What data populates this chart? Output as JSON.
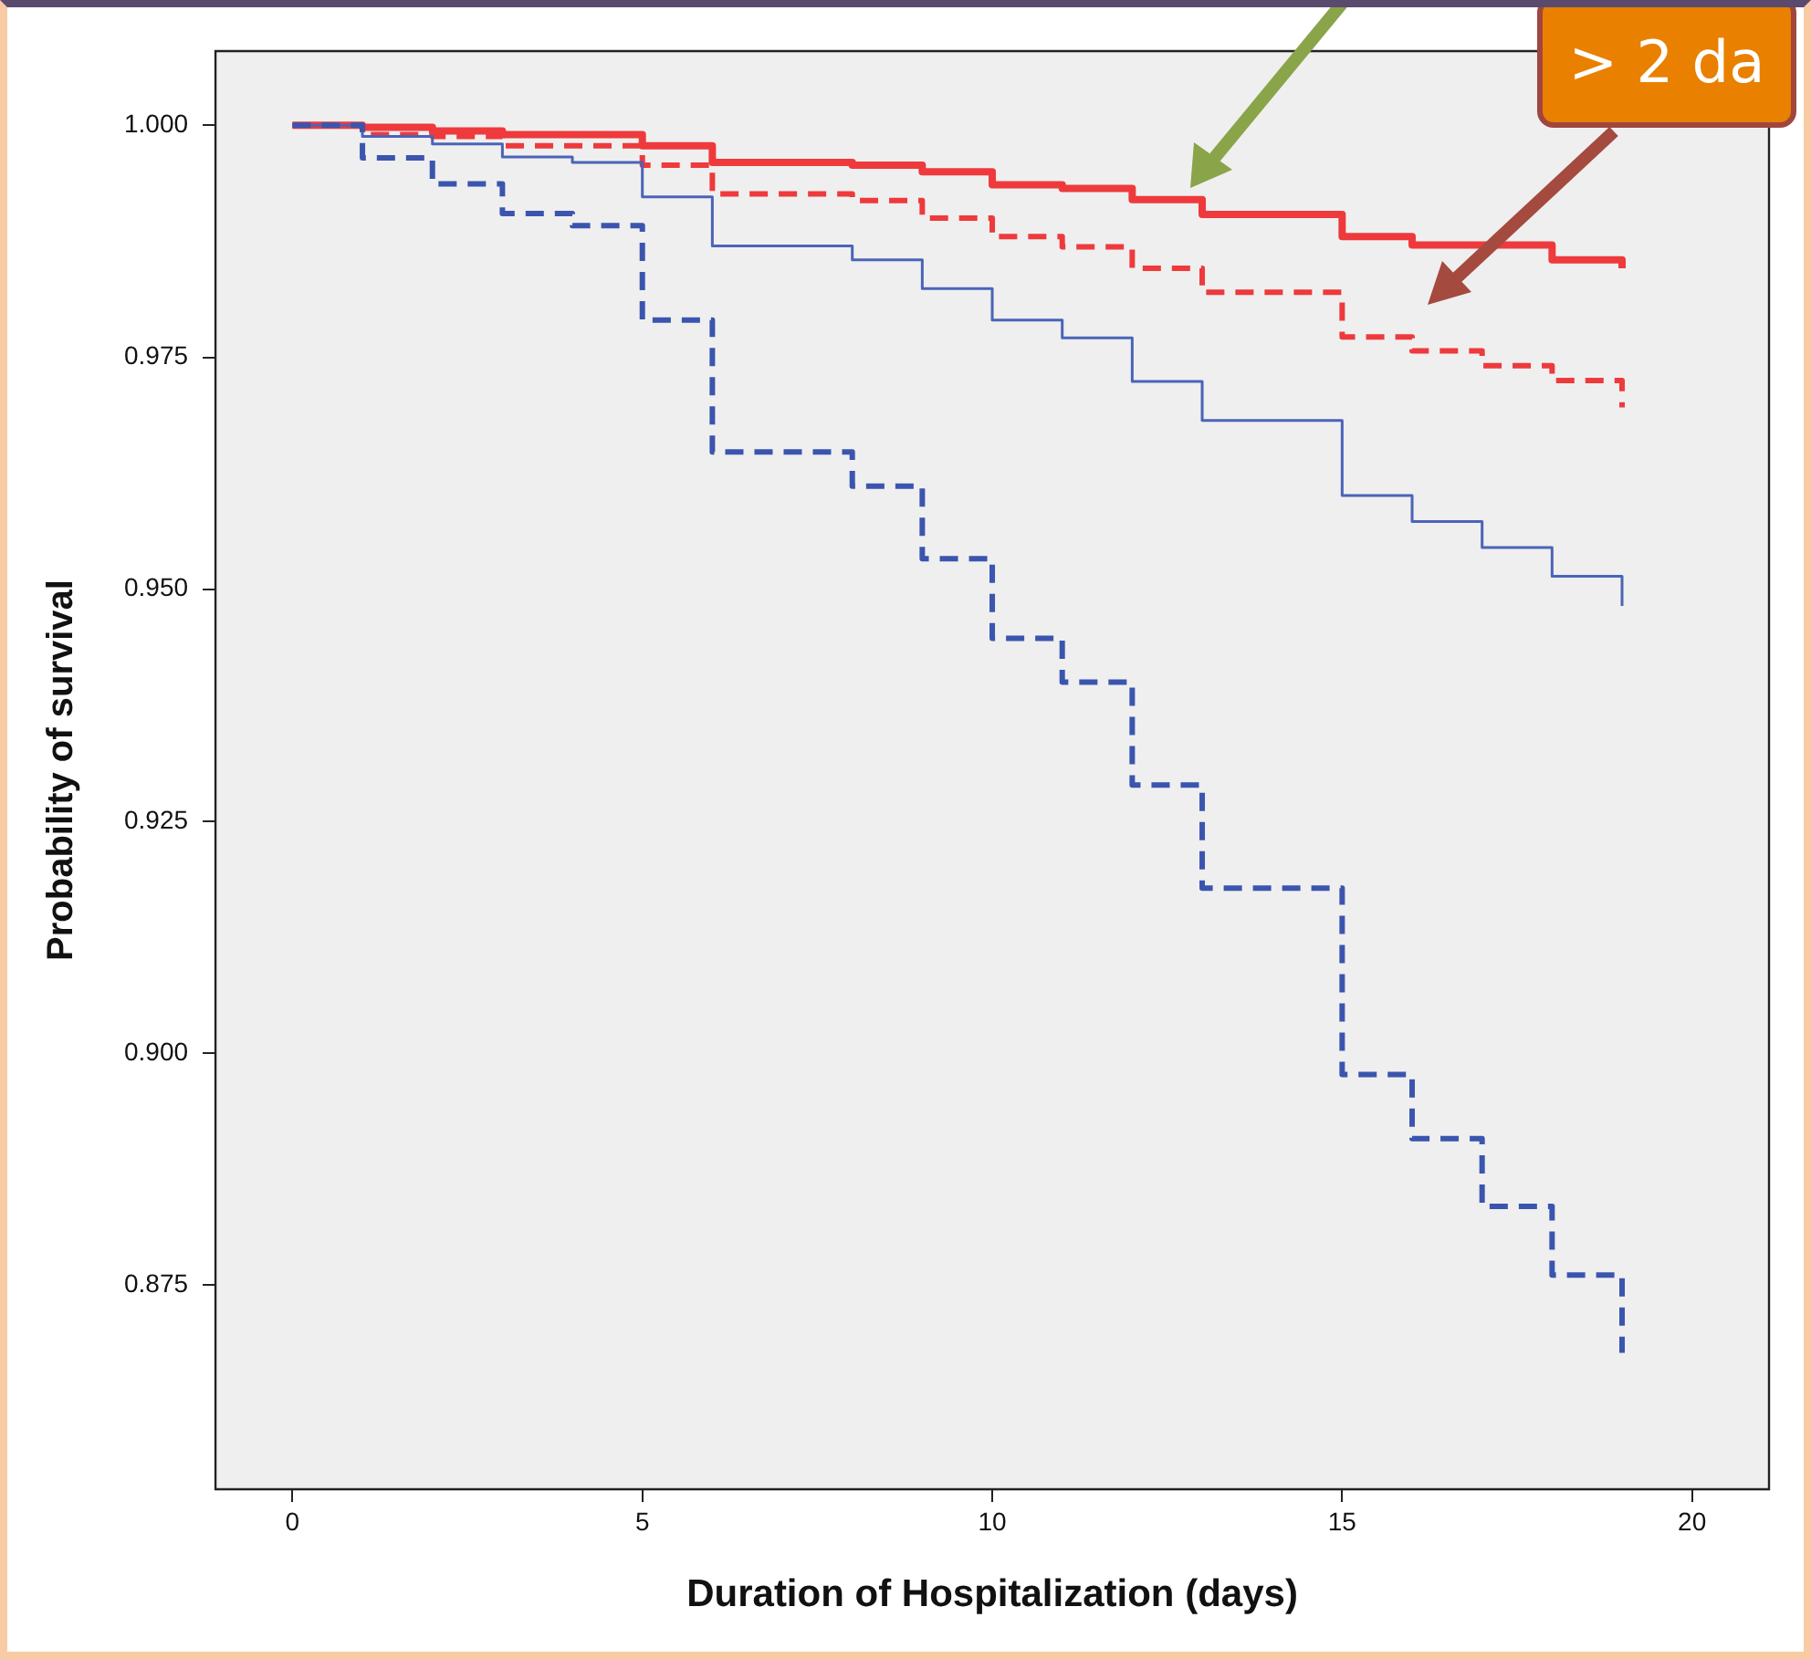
{
  "chart_data": {
    "type": "step",
    "xlabel": "Duration of Hospitalization (days)",
    "ylabel": "Probability of survival",
    "xlim": [
      -1.1,
      21.1
    ],
    "ylim": [
      0.853,
      1.008
    ],
    "xticks": [
      0,
      5,
      10,
      15,
      20
    ],
    "yticks": [
      {
        "value": 1.0,
        "label": "1.000"
      },
      0.975,
      {
        "value": 0.95,
        "label": "0.950"
      },
      0.925,
      {
        "value": 0.9,
        "label": "0.900"
      },
      0.875
    ],
    "grid": false,
    "annotations": [
      "> 2 da"
    ],
    "series": [
      {
        "color": "#ee3a3c",
        "line_style": "solid",
        "x": [
          0,
          1,
          2,
          3,
          5,
          6,
          8,
          9,
          10,
          11,
          12,
          13,
          15,
          16,
          18,
          19
        ],
        "values": [
          1.0,
          0.9998,
          0.9994,
          0.999,
          0.9978,
          0.996,
          0.9957,
          0.995,
          0.9936,
          0.9932,
          0.992,
          0.9904,
          0.988,
          0.9871,
          0.9855,
          0.9846
        ]
      },
      {
        "color": "#ee3a3c",
        "line_style": "dashed",
        "x": [
          0,
          1,
          2,
          3,
          5,
          6,
          8,
          9,
          10,
          11,
          12,
          13,
          15,
          16,
          17,
          18,
          19
        ],
        "values": [
          1.0,
          0.999,
          0.9988,
          0.9978,
          0.9957,
          0.9926,
          0.9919,
          0.99,
          0.988,
          0.9869,
          0.9846,
          0.982,
          0.9772,
          0.9757,
          0.9741,
          0.9725,
          0.9696
        ]
      },
      {
        "color": "#4a64b8",
        "line_style": "solid",
        "x": [
          0,
          1,
          2,
          3,
          4,
          5,
          6,
          8,
          9,
          10,
          11,
          12,
          13,
          15,
          16,
          17,
          18,
          19
        ],
        "values": [
          1.0,
          0.9988,
          0.998,
          0.9966,
          0.996,
          0.9923,
          0.987,
          0.9855,
          0.9824,
          0.979,
          0.9771,
          0.9724,
          0.9682,
          0.9601,
          0.9573,
          0.9545,
          0.9514,
          0.9482
        ]
      },
      {
        "color": "#3b55ae",
        "line_style": "dashed",
        "x": [
          0,
          1,
          2,
          3,
          4,
          5,
          6,
          8,
          9,
          10,
          11,
          12,
          13,
          15,
          16,
          17,
          18,
          19
        ],
        "values": [
          1.0,
          0.9965,
          0.9937,
          0.9905,
          0.9892,
          0.979,
          0.9648,
          0.9611,
          0.9533,
          0.9447,
          0.94,
          0.9289,
          0.9178,
          0.8977,
          0.8908,
          0.8835,
          0.8761,
          0.8677
        ]
      }
    ]
  }
}
